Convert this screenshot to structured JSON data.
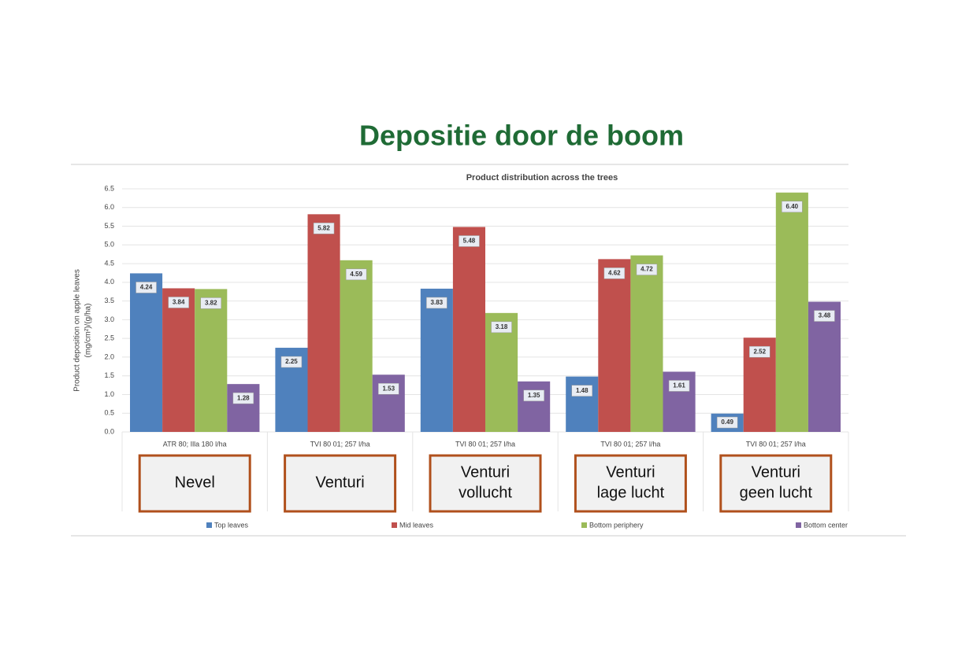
{
  "chart_data": {
    "type": "bar",
    "heading": "Depositie door de boom",
    "title": "Product distribution across the trees",
    "ylabel": [
      "Product deposition on apple leaves",
      "(mg/cm²)/(g/ha)"
    ],
    "categories": [
      "ATR 80; Illa 180 l/ha",
      "TVI 80 01; 257 l/ha",
      "TVI 80 01; 257 l/ha",
      "TVI 80 01; 257 l/ha",
      "TVI 80 01; 257 l/ha"
    ],
    "box_labels": [
      [
        "Nevel"
      ],
      [
        "Venturi"
      ],
      [
        "Venturi",
        "vollucht"
      ],
      [
        "Venturi",
        "lage lucht"
      ],
      [
        "Venturi",
        "geen lucht"
      ]
    ],
    "series": [
      {
        "name": "Top leaves",
        "color": "#4f81bd",
        "values": [
          4.24,
          2.25,
          3.83,
          1.48,
          0.49
        ],
        "value_labels": [
          "4.24",
          "2.25",
          "3.83",
          "1.48",
          "0.49"
        ]
      },
      {
        "name": "Mid leaves",
        "color": "#c0504d",
        "values": [
          3.84,
          5.82,
          5.48,
          4.62,
          2.52
        ],
        "value_labels": [
          "3.84",
          "5.82",
          "5.48",
          "4.62",
          "2.52"
        ]
      },
      {
        "name": "Bottom periphery",
        "color": "#9bbb59",
        "values": [
          3.82,
          4.59,
          3.18,
          4.72,
          6.4
        ],
        "value_labels": [
          "3.82",
          "4.59",
          "3.18",
          "4.72",
          "6.40"
        ]
      },
      {
        "name": "Bottom center",
        "color": "#8064a2",
        "values": [
          1.28,
          1.53,
          1.35,
          1.61,
          3.48
        ],
        "value_labels": [
          "1.28",
          "1.53",
          "1.35",
          "1.61",
          "3.48"
        ]
      }
    ],
    "ylim": [
      0,
      6.5
    ],
    "yticks": [
      {
        "value": 0,
        "label": "0.0"
      },
      {
        "value": 0.5,
        "label": "0.5"
      },
      {
        "value": 1,
        "label": "1.0"
      },
      {
        "value": 1.5,
        "label": "1.5"
      },
      {
        "value": 2,
        "label": "2.0"
      },
      {
        "value": 2.5,
        "label": "2.5"
      },
      {
        "value": 3,
        "label": "3.0"
      },
      {
        "value": 3.5,
        "label": "3.5"
      },
      {
        "value": 4,
        "label": "4.0"
      },
      {
        "value": 4.5,
        "label": "4.5"
      },
      {
        "value": 5,
        "label": "5.0"
      },
      {
        "value": 5.5,
        "label": "5.5"
      },
      {
        "value": 6,
        "label": "6.0"
      },
      {
        "value": 6.5,
        "label": "6.5"
      }
    ],
    "grid": true
  }
}
